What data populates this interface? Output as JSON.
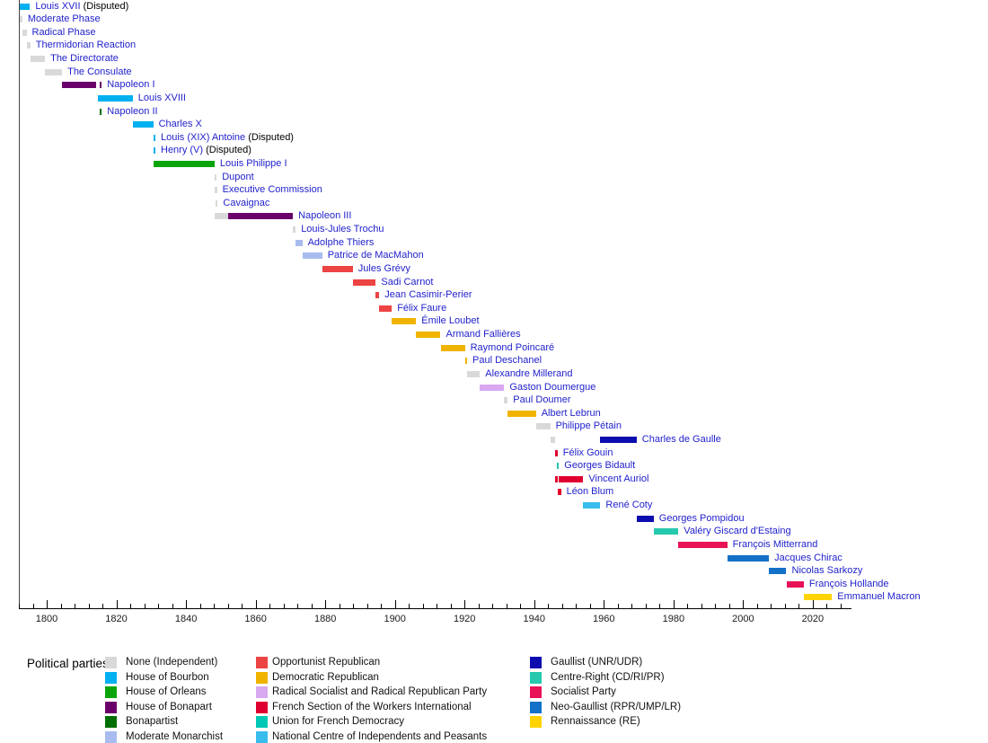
{
  "chart_data": {
    "type": "timeline",
    "description": "Timeline of French heads of state colored by political party",
    "axis": {
      "min_year": 1792,
      "max_year": 2031,
      "minor_tick_step": 4,
      "major_tick_years": [
        1800,
        1820,
        1840,
        1860,
        1880,
        1900,
        1920,
        1940,
        1960,
        1980,
        2000,
        2020
      ],
      "grid": false
    },
    "parties": [
      {
        "id": "none",
        "label": "None (Independent)",
        "color": "#D9D9D9"
      },
      {
        "id": "bourbon",
        "label": "House of Bourbon",
        "color": "#00B0F0"
      },
      {
        "id": "orleans",
        "label": "House of Orleans",
        "color": "#0BA50B"
      },
      {
        "id": "bonapart",
        "label": "House of Bonapart",
        "color": "#6A006A"
      },
      {
        "id": "bonapartist",
        "label": "Bonapartist",
        "color": "#006E00"
      },
      {
        "id": "moderate_monarchist",
        "label": "Moderate Monarchist",
        "color": "#A8BCF0"
      },
      {
        "id": "opportunist",
        "label": "Opportunist Republican",
        "color": "#EC4343"
      },
      {
        "id": "democratic_republican",
        "label": "Democratic Republican",
        "color": "#F0B400"
      },
      {
        "id": "radical_socialist",
        "label": "Radical Socialist and Radical Republican Party",
        "color": "#D8A8F0"
      },
      {
        "id": "sfio",
        "label": "French Section of the Workers International",
        "color": "#E00030"
      },
      {
        "id": "udf",
        "label": "Union for French Democracy",
        "color": "#00C8B4"
      },
      {
        "id": "cnip",
        "label": "National Centre of Independents and Peasants",
        "color": "#38BCEC"
      },
      {
        "id": "gaullist",
        "label": "Gaullist (UNR/UDR)",
        "color": "#0D0DAF"
      },
      {
        "id": "centre_right",
        "label": "Centre-Right (CD/RI/PR)",
        "color": "#26C8AE"
      },
      {
        "id": "socialist",
        "label": "Socialist Party",
        "color": "#E81256"
      },
      {
        "id": "neo_gaullist",
        "label": "Neo-Gaullist (RPR/UMP/LR)",
        "color": "#1371C8"
      },
      {
        "id": "re",
        "label": "Rennaissance (RE)",
        "color": "#FFD302"
      }
    ],
    "entries": [
      {
        "name": "Louis XVII",
        "suffix": " (Disputed)",
        "segments": [
          {
            "from": 1792.2,
            "to": 1795.2,
            "party": "bourbon"
          }
        ]
      },
      {
        "name": "Moderate Phase",
        "suffix": "",
        "segments": [
          {
            "from": 1792.2,
            "to": 1793.0,
            "party": "none"
          }
        ]
      },
      {
        "name": "Radical Phase",
        "suffix": "",
        "segments": [
          {
            "from": 1793.0,
            "to": 1794.2,
            "party": "none"
          }
        ]
      },
      {
        "name": "Thermidorian Reaction",
        "suffix": "",
        "segments": [
          {
            "from": 1794.2,
            "to": 1795.3,
            "party": "none"
          }
        ]
      },
      {
        "name": "The Directorate",
        "suffix": "",
        "segments": [
          {
            "from": 1795.3,
            "to": 1799.5,
            "party": "none"
          }
        ]
      },
      {
        "name": "The Consulate",
        "suffix": "",
        "segments": [
          {
            "from": 1799.5,
            "to": 1804.4,
            "party": "none"
          }
        ]
      },
      {
        "name": "Napoleon I",
        "suffix": "",
        "segments": [
          {
            "from": 1804.4,
            "to": 1814.3,
            "party": "bonapart"
          },
          {
            "from": 1815.2,
            "to": 1815.8,
            "party": "bonapart"
          }
        ]
      },
      {
        "name": "Louis XVIII",
        "suffix": "",
        "segments": [
          {
            "from": 1814.8,
            "to": 1824.7,
            "party": "bourbon"
          }
        ]
      },
      {
        "name": "Napoleon II",
        "suffix": "",
        "segments": [
          {
            "from": 1815.2,
            "to": 1815.8,
            "party": "bonapartist"
          }
        ]
      },
      {
        "name": "Charles X",
        "suffix": "",
        "segments": [
          {
            "from": 1824.7,
            "to": 1830.6,
            "party": "bourbon"
          }
        ]
      },
      {
        "name": "Louis (XIX) Antoine",
        "suffix": " (Disputed)",
        "segments": [
          {
            "from": 1830.6,
            "to": 1831.2,
            "party": "bourbon"
          }
        ]
      },
      {
        "name": "Henry (V)",
        "suffix": " (Disputed)",
        "segments": [
          {
            "from": 1830.6,
            "to": 1831.2,
            "party": "bourbon"
          }
        ]
      },
      {
        "name": "Louis Philippe I",
        "suffix": "",
        "segments": [
          {
            "from": 1830.6,
            "to": 1848.2,
            "party": "orleans"
          }
        ]
      },
      {
        "name": "Dupont",
        "suffix": "",
        "segments": [
          {
            "from": 1848.2,
            "to": 1848.8,
            "party": "none"
          }
        ]
      },
      {
        "name": "Executive Commission",
        "suffix": "",
        "segments": [
          {
            "from": 1848.3,
            "to": 1848.9,
            "party": "none"
          }
        ]
      },
      {
        "name": "Cavaignac",
        "suffix": "",
        "segments": [
          {
            "from": 1848.5,
            "to": 1849.1,
            "party": "none"
          }
        ]
      },
      {
        "name": "Napoleon III",
        "suffix": "",
        "segments": [
          {
            "from": 1848.2,
            "to": 1852.0,
            "party": "none"
          },
          {
            "from": 1852.0,
            "to": 1870.7,
            "party": "bonapart"
          }
        ]
      },
      {
        "name": "Louis-Jules Trochu",
        "suffix": "",
        "segments": [
          {
            "from": 1870.7,
            "to": 1871.5,
            "party": "none"
          }
        ]
      },
      {
        "name": "Adolphe Thiers",
        "suffix": "",
        "segments": [
          {
            "from": 1871.5,
            "to": 1873.4,
            "party": "moderate_monarchist"
          }
        ]
      },
      {
        "name": "Patrice de MacMahon",
        "suffix": "",
        "segments": [
          {
            "from": 1873.4,
            "to": 1879.1,
            "party": "moderate_monarchist"
          }
        ]
      },
      {
        "name": "Jules Grévy",
        "suffix": "",
        "segments": [
          {
            "from": 1879.1,
            "to": 1887.9,
            "party": "opportunist"
          }
        ]
      },
      {
        "name": "Sadi Carnot",
        "suffix": "",
        "segments": [
          {
            "from": 1887.9,
            "to": 1894.5,
            "party": "opportunist"
          }
        ]
      },
      {
        "name": "Jean Casimir-Perier",
        "suffix": "",
        "segments": [
          {
            "from": 1894.5,
            "to": 1895.5,
            "party": "opportunist"
          }
        ]
      },
      {
        "name": "Félix Faure",
        "suffix": "",
        "segments": [
          {
            "from": 1895.5,
            "to": 1899.1,
            "party": "opportunist"
          }
        ]
      },
      {
        "name": "Émile Loubet",
        "suffix": "",
        "segments": [
          {
            "from": 1899.1,
            "to": 1906.1,
            "party": "democratic_republican"
          }
        ]
      },
      {
        "name": "Armand Fallières",
        "suffix": "",
        "segments": [
          {
            "from": 1906.1,
            "to": 1913.1,
            "party": "democratic_republican"
          }
        ]
      },
      {
        "name": "Raymond Poincaré",
        "suffix": "",
        "segments": [
          {
            "from": 1913.1,
            "to": 1920.1,
            "party": "democratic_republican"
          }
        ]
      },
      {
        "name": "Paul Deschanel",
        "suffix": "",
        "segments": [
          {
            "from": 1920.1,
            "to": 1920.7,
            "party": "democratic_republican"
          }
        ]
      },
      {
        "name": "Alexandre Millerand",
        "suffix": "",
        "segments": [
          {
            "from": 1920.7,
            "to": 1924.4,
            "party": "none"
          }
        ]
      },
      {
        "name": "Gaston Doumergue",
        "suffix": "",
        "segments": [
          {
            "from": 1924.4,
            "to": 1931.4,
            "party": "radical_socialist"
          }
        ]
      },
      {
        "name": "Paul Doumer",
        "suffix": "",
        "segments": [
          {
            "from": 1931.4,
            "to": 1932.4,
            "party": "none"
          }
        ]
      },
      {
        "name": "Albert Lebrun",
        "suffix": "",
        "segments": [
          {
            "from": 1932.4,
            "to": 1940.5,
            "party": "democratic_republican"
          }
        ]
      },
      {
        "name": "Philippe Pétain",
        "suffix": "",
        "segments": [
          {
            "from": 1940.5,
            "to": 1944.6,
            "party": "none"
          }
        ]
      },
      {
        "name": "Charles de Gaulle",
        "suffix": "",
        "segments": [
          {
            "from": 1944.6,
            "to": 1946.1,
            "party": "none"
          },
          {
            "from": 1959.0,
            "to": 1969.4,
            "party": "gaullist"
          }
        ]
      },
      {
        "name": "Félix Gouin",
        "suffix": "",
        "segments": [
          {
            "from": 1946.1,
            "to": 1946.7,
            "party": "sfio"
          }
        ]
      },
      {
        "name": "Georges Bidault",
        "suffix": "",
        "segments": [
          {
            "from": 1946.5,
            "to": 1947.1,
            "party": "centre_right"
          }
        ]
      },
      {
        "name": "Vincent Auriol",
        "suffix": "",
        "segments": [
          {
            "from": 1946.1,
            "to": 1946.7,
            "party": "sfio"
          },
          {
            "from": 1947.1,
            "to": 1954.1,
            "party": "sfio"
          }
        ]
      },
      {
        "name": "Léon Blum",
        "suffix": "",
        "segments": [
          {
            "from": 1946.7,
            "to": 1947.7,
            "party": "sfio"
          }
        ]
      },
      {
        "name": "René Coty",
        "suffix": "",
        "segments": [
          {
            "from": 1954.1,
            "to": 1959.0,
            "party": "cnip"
          }
        ]
      },
      {
        "name": "Georges Pompidou",
        "suffix": "",
        "segments": [
          {
            "from": 1969.4,
            "to": 1974.3,
            "party": "gaullist"
          }
        ]
      },
      {
        "name": "Valéry Giscard d'Estaing",
        "suffix": "",
        "segments": [
          {
            "from": 1974.3,
            "to": 1981.4,
            "party": "centre_right"
          }
        ]
      },
      {
        "name": "François Mitterrand",
        "suffix": "",
        "segments": [
          {
            "from": 1981.4,
            "to": 1995.4,
            "party": "socialist"
          }
        ]
      },
      {
        "name": "Jacques Chirac",
        "suffix": "",
        "segments": [
          {
            "from": 1995.4,
            "to": 2007.4,
            "party": "neo_gaullist"
          }
        ]
      },
      {
        "name": "Nicolas Sarkozy",
        "suffix": "",
        "segments": [
          {
            "from": 2007.4,
            "to": 2012.4,
            "party": "neo_gaullist"
          }
        ]
      },
      {
        "name": "François Hollande",
        "suffix": "",
        "segments": [
          {
            "from": 2012.4,
            "to": 2017.4,
            "party": "socialist"
          }
        ]
      },
      {
        "name": "Emmanuel Macron",
        "suffix": "",
        "segments": [
          {
            "from": 2017.4,
            "to": 2025.5,
            "party": "re"
          }
        ]
      }
    ],
    "legend": {
      "title": "Political parties:",
      "columns": [
        [
          "none",
          "bourbon",
          "orleans",
          "bonapart",
          "bonapartist",
          "moderate_monarchist"
        ],
        [
          "opportunist",
          "democratic_republican",
          "radical_socialist",
          "sfio",
          "udf",
          "cnip"
        ],
        [
          "gaullist",
          "centre_right",
          "socialist",
          "neo_gaullist",
          "re"
        ]
      ]
    }
  }
}
